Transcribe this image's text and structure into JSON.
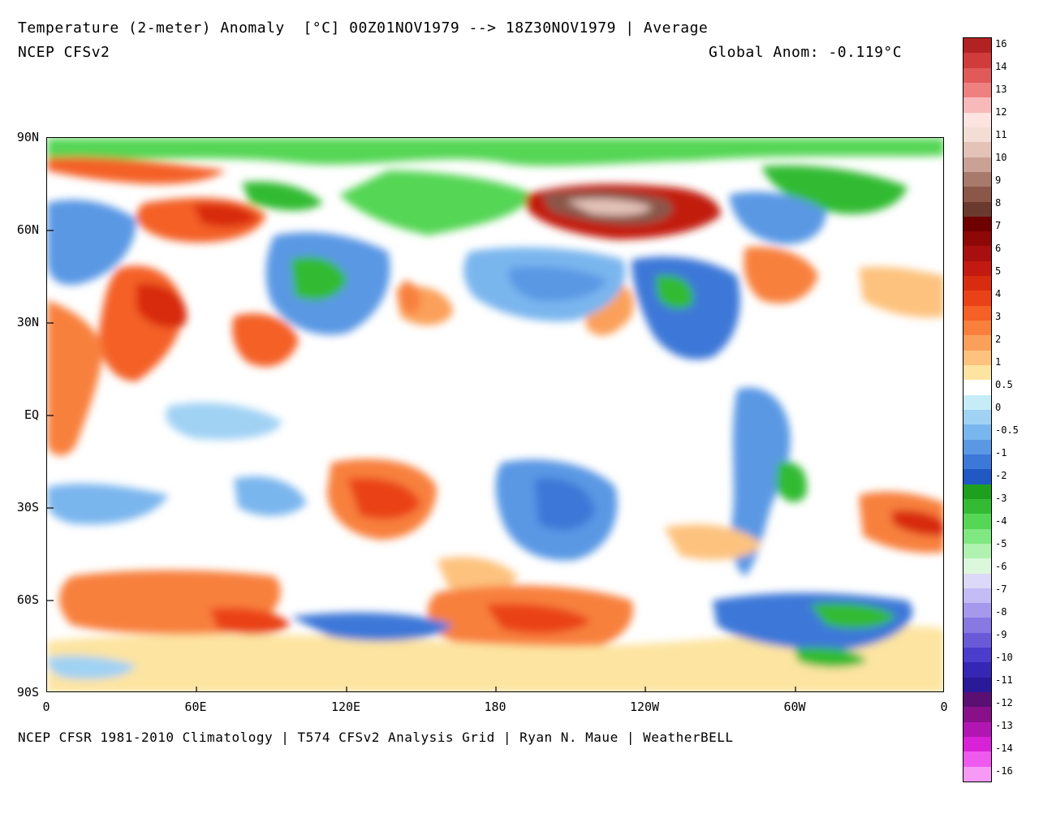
{
  "header": {
    "title": "Temperature (2-meter) Anomaly  [°C] 00Z01NOV1979 --> 18Z30NOV1979 | Average",
    "model": "NCEP CFSv2",
    "global_anom": "Global Anom: -0.119°C"
  },
  "footer": {
    "credit": "NCEP CFSR 1981-2010 Climatology | T574 CFSv2 Analysis Grid | Ryan N. Maue | WeatherBELL"
  },
  "axes": {
    "lat_labels": [
      "90N",
      "60N",
      "30N",
      "EQ",
      "30S",
      "60S",
      "90S"
    ],
    "lon_labels": [
      "0",
      "60E",
      "120E",
      "180",
      "120W",
      "60W",
      "0"
    ]
  },
  "legend": {
    "labels": [
      "16",
      "14",
      "13",
      "12",
      "11",
      "10",
      "9",
      "8",
      "7",
      "6",
      "5",
      "4",
      "3",
      "2",
      "1",
      "0.5",
      "0",
      "-0.5",
      "-1",
      "-2",
      "-3",
      "-4",
      "-5",
      "-6",
      "-7",
      "-8",
      "-9",
      "-10",
      "-11",
      "-12",
      "-13",
      "-14",
      "-16"
    ],
    "colors": [
      "#b22222",
      "#d03c3c",
      "#e05a5a",
      "#ee8080",
      "#f7b9b9",
      "#fde4e0",
      "#f3ddd5",
      "#e3c2b8",
      "#c9a195",
      "#a87a6c",
      "#8a5748",
      "#6b3a2e",
      "#6e0000",
      "#8e0808",
      "#a81010",
      "#c21a10",
      "#d82c10",
      "#ea4218",
      "#f46026",
      "#f8803c",
      "#fba05a",
      "#fdc27e",
      "#fde4a0",
      "#ffffff",
      "#c6ecf8",
      "#a0d2f4",
      "#7ab6ee",
      "#5a98e4",
      "#3c78d8",
      "#2058c4",
      "#1ea01e",
      "#33bb33",
      "#55d655",
      "#80e880",
      "#b0f2b0",
      "#dcf8dc",
      "#dcd8f8",
      "#c4bcf4",
      "#a698ec",
      "#8878e2",
      "#6a5ad8",
      "#4c3ccc",
      "#3626b4",
      "#2a1a9a",
      "#5a1072",
      "#8a108a",
      "#b216b2",
      "#d822d8",
      "#ee5aee",
      "#f69af6"
    ]
  }
}
